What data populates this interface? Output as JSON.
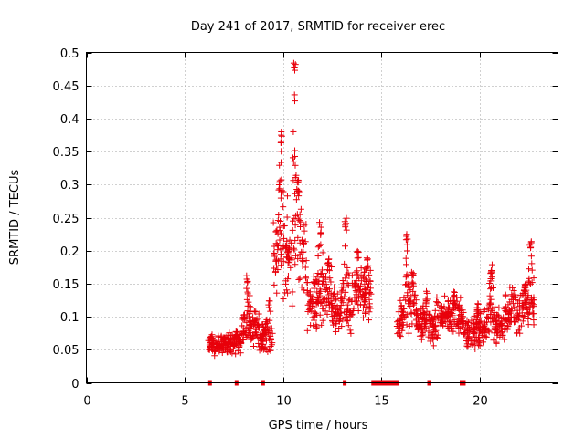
{
  "chart_data": {
    "type": "scatter",
    "title": "Day 241 of 2017, SRMTID for receiver erec",
    "xlabel": "GPS time / hours",
    "ylabel": "SRMTID / TECUs",
    "xlim": [
      0,
      24
    ],
    "ylim": [
      0,
      0.5
    ],
    "xticks": [
      0,
      5,
      10,
      15,
      20
    ],
    "yticks": [
      0,
      0.05,
      0.1,
      0.15,
      0.2,
      0.25,
      0.3,
      0.35,
      0.4,
      0.45,
      0.5
    ],
    "ytick_labels": [
      "0",
      "0.05",
      "0.1",
      "0.15",
      "0.2",
      "0.25",
      "0.3",
      "0.35",
      "0.4",
      "0.45",
      "0.5"
    ],
    "grid": true,
    "marker": "+",
    "color": "#e8000b",
    "series": [
      {
        "name": "SRMTID",
        "segments": [
          {
            "x_start": 6.2,
            "x_end": 7.0,
            "y_mean": 0.058,
            "y_spread": 0.018,
            "peaks": []
          },
          {
            "x_start": 7.0,
            "x_end": 7.9,
            "y_mean": 0.06,
            "y_spread": 0.018,
            "peaks": [
              [
                7.6,
                0.08
              ]
            ]
          },
          {
            "x_start": 7.9,
            "x_end": 8.8,
            "y_mean": 0.08,
            "y_spread": 0.03,
            "peaks": [
              [
                8.2,
                0.17
              ],
              [
                8.6,
                0.11
              ]
            ]
          },
          {
            "x_start": 8.8,
            "x_end": 9.5,
            "y_mean": 0.065,
            "y_spread": 0.03,
            "peaks": [
              [
                9.3,
                0.13
              ]
            ]
          },
          {
            "x_start": 9.5,
            "x_end": 10.5,
            "y_mean": 0.19,
            "y_spread": 0.1,
            "peaks": [
              [
                9.9,
                0.38
              ],
              [
                10.3,
                0.2
              ]
            ]
          },
          {
            "x_start": 10.5,
            "x_end": 11.2,
            "y_mean": 0.2,
            "y_spread": 0.09,
            "peaks": [
              [
                10.6,
                0.485
              ],
              [
                10.8,
                0.3
              ]
            ]
          },
          {
            "x_start": 11.2,
            "x_end": 12.5,
            "y_mean": 0.12,
            "y_spread": 0.05,
            "peaks": [
              [
                11.9,
                0.245
              ],
              [
                12.3,
                0.19
              ]
            ]
          },
          {
            "x_start": 12.5,
            "x_end": 13.5,
            "y_mean": 0.11,
            "y_spread": 0.04,
            "peaks": [
              [
                13.2,
                0.25
              ]
            ]
          },
          {
            "x_start": 13.5,
            "x_end": 14.5,
            "y_mean": 0.13,
            "y_spread": 0.04,
            "peaks": [
              [
                13.8,
                0.2
              ],
              [
                14.3,
                0.19
              ]
            ]
          },
          {
            "x_start": 15.8,
            "x_end": 16.8,
            "y_mean": 0.1,
            "y_spread": 0.035,
            "peaks": [
              [
                16.3,
                0.225
              ],
              [
                16.6,
                0.17
              ]
            ]
          },
          {
            "x_start": 16.8,
            "x_end": 17.8,
            "y_mean": 0.085,
            "y_spread": 0.03,
            "peaks": [
              [
                17.3,
                0.14
              ]
            ]
          },
          {
            "x_start": 17.8,
            "x_end": 19.2,
            "y_mean": 0.1,
            "y_spread": 0.035,
            "peaks": [
              [
                18.7,
                0.14
              ]
            ]
          },
          {
            "x_start": 19.2,
            "x_end": 20.2,
            "y_mean": 0.075,
            "y_spread": 0.025,
            "peaks": [
              [
                19.9,
                0.12
              ]
            ]
          },
          {
            "x_start": 20.2,
            "x_end": 21.3,
            "y_mean": 0.085,
            "y_spread": 0.03,
            "peaks": [
              [
                20.6,
                0.18
              ]
            ]
          },
          {
            "x_start": 21.3,
            "x_end": 22.8,
            "y_mean": 0.11,
            "y_spread": 0.04,
            "peaks": [
              [
                22.6,
                0.22
              ],
              [
                22.3,
                0.15
              ]
            ]
          }
        ]
      }
    ],
    "baseline_markers": [
      {
        "x_start": 6.2,
        "x_end": 6.35
      },
      {
        "x_start": 7.55,
        "x_end": 7.7
      },
      {
        "x_start": 8.9,
        "x_end": 9.05
      },
      {
        "x_start": 13.05,
        "x_end": 13.2
      },
      {
        "x_start": 14.5,
        "x_end": 15.9
      },
      {
        "x_start": 17.35,
        "x_end": 17.5
      },
      {
        "x_start": 19.0,
        "x_end": 19.3
      }
    ]
  }
}
